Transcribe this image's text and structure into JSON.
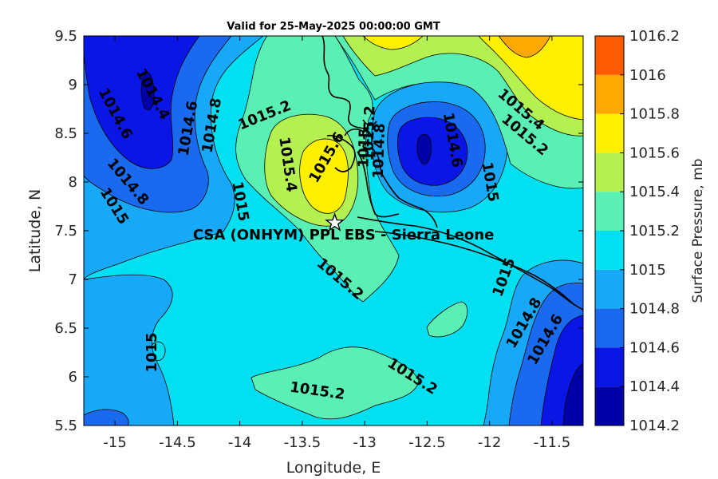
{
  "title": "Valid for 25-May-2025 00:00:00 GMT",
  "x_axis": {
    "label": "Longitude, E",
    "range": [
      -15.25,
      -11.25
    ],
    "ticks": [
      "-15",
      "-14.5",
      "-14",
      "-13.5",
      "-13",
      "-12.5",
      "-12",
      "-11.5"
    ]
  },
  "y_axis": {
    "label": "Latitude, N",
    "range": [
      5.5,
      9.5
    ],
    "ticks": [
      "5.5",
      "6",
      "6.5",
      "7",
      "7.5",
      "8",
      "8.5",
      "9",
      "9.5"
    ]
  },
  "colorbar": {
    "label": "Surface Pressure, mb",
    "levels": [
      "1014.2",
      "1014.4",
      "1014.6",
      "1014.8",
      "1015",
      "1015.2",
      "1015.4",
      "1015.6",
      "1015.8",
      "1016",
      "1016.2"
    ],
    "colors": [
      "#0000a8",
      "#0a16e6",
      "#1a6af0",
      "#18a8f8",
      "#00e0f0",
      "#5af0b4",
      "#b4f050",
      "#fff000",
      "#ffa800",
      "#ff5a00",
      "#ff0000"
    ]
  },
  "site": {
    "label": "CSA (ONHYM) PPL EBS  - Sierra Leone",
    "lon": -13.24,
    "lat": 7.58,
    "marker": "star-icon"
  },
  "contour_labels": [
    {
      "text": "1014.4",
      "lon": -14.7,
      "lat": 8.9,
      "angle": 62
    },
    {
      "text": "1014.6",
      "lon": -15.0,
      "lat": 8.7,
      "angle": 62
    },
    {
      "text": "1014.6",
      "lon": -14.41,
      "lat": 8.55,
      "angle": -80
    },
    {
      "text": "1014.8",
      "lon": -14.22,
      "lat": 8.58,
      "angle": -80
    },
    {
      "text": "1014.8",
      "lon": -14.9,
      "lat": 8.0,
      "angle": 50
    },
    {
      "text": "1015",
      "lon": -15.01,
      "lat": 7.75,
      "angle": 58
    },
    {
      "text": "1015",
      "lon": -14.0,
      "lat": 7.8,
      "angle": 80
    },
    {
      "text": "1015.2",
      "lon": -13.8,
      "lat": 8.68,
      "angle": -22
    },
    {
      "text": "1015.4",
      "lon": -13.62,
      "lat": 8.18,
      "angle": 82
    },
    {
      "text": "1015.6",
      "lon": -13.3,
      "lat": 8.25,
      "angle": -60
    },
    {
      "text": "1015.2",
      "lon": -12.96,
      "lat": 8.5,
      "angle": -88
    },
    {
      "text": "1015",
      "lon": -13.0,
      "lat": 8.35,
      "angle": -88
    },
    {
      "text": "1014.8",
      "lon": -12.88,
      "lat": 8.32,
      "angle": -88
    },
    {
      "text": "1014.6",
      "lon": -12.3,
      "lat": 8.43,
      "angle": 80
    },
    {
      "text": "1015.4",
      "lon": -11.75,
      "lat": 8.74,
      "angle": 40
    },
    {
      "text": "1015.2",
      "lon": -11.72,
      "lat": 8.48,
      "angle": 40
    },
    {
      "text": "1015",
      "lon": -12.0,
      "lat": 8.0,
      "angle": 80
    },
    {
      "text": "1015.2",
      "lon": -13.2,
      "lat": 7.0,
      "angle": 40
    },
    {
      "text": "1015",
      "lon": -11.88,
      "lat": 7.02,
      "angle": -70
    },
    {
      "text": "1014.8",
      "lon": -11.72,
      "lat": 6.55,
      "angle": -60
    },
    {
      "text": "1014.6",
      "lon": -11.55,
      "lat": 6.38,
      "angle": -60
    },
    {
      "text": "1015",
      "lon": -14.7,
      "lat": 6.25,
      "angle": -90
    },
    {
      "text": "1015.2",
      "lon": -12.62,
      "lat": 6.0,
      "angle": 32
    },
    {
      "text": "1015.2",
      "lon": -13.38,
      "lat": 5.85,
      "angle": 8
    }
  ]
}
